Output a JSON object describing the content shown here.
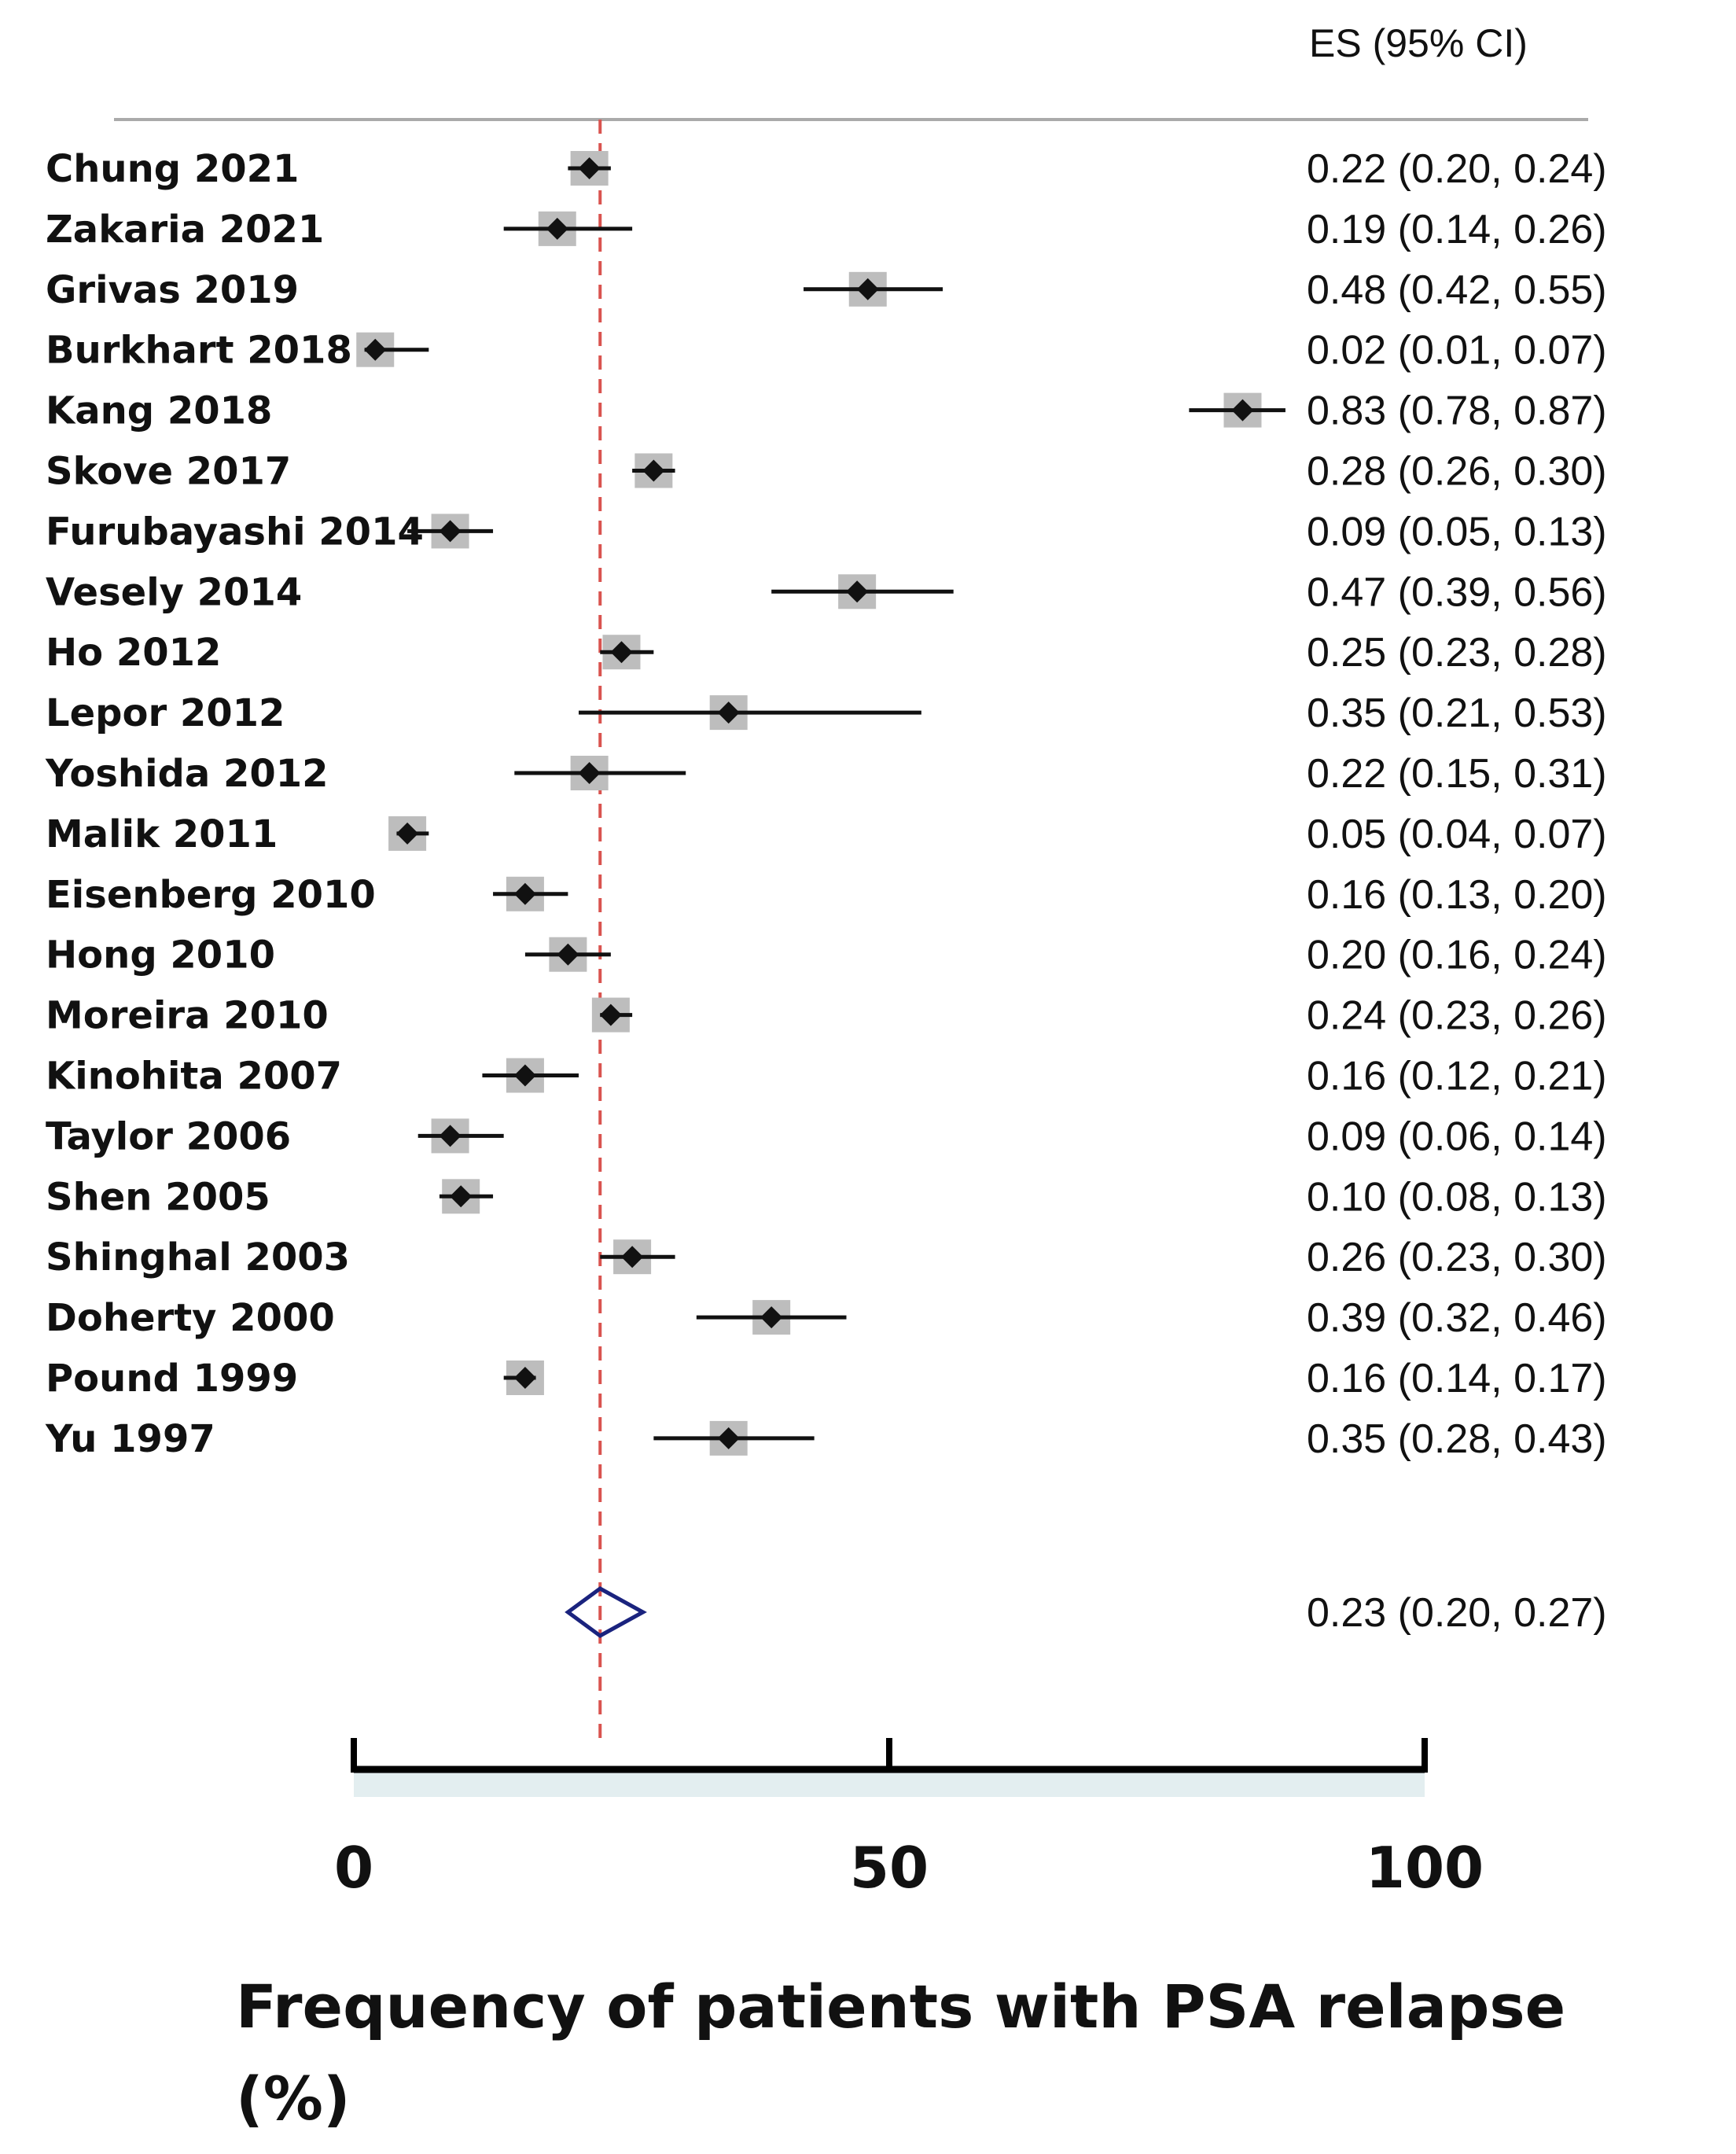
{
  "chart_data": {
    "type": "forest",
    "es_header": "ES (95% CI)",
    "xlabel_lines": [
      "Frequency of patients with PSA relapse",
      "(%)"
    ],
    "xlim": [
      0,
      100
    ],
    "x_ticks": [
      0,
      50,
      100
    ],
    "x_tick_labels": [
      "0",
      "50",
      "100"
    ],
    "reference_line": 23,
    "studies": [
      {
        "label": "Chung 2021",
        "es": 22,
        "lo": 20,
        "hi": 24,
        "text": "0.22 (0.20,  0.24)"
      },
      {
        "label": "Zakaria 2021",
        "es": 19,
        "lo": 14,
        "hi": 26,
        "text": "0.19 (0.14,  0.26)"
      },
      {
        "label": "Grivas 2019",
        "es": 48,
        "lo": 42,
        "hi": 55,
        "text": "0.48 (0.42,  0.55)"
      },
      {
        "label": "Burkhart 2018",
        "es": 2,
        "lo": 1,
        "hi": 7,
        "text": "0.02 (0.01,   0.07)"
      },
      {
        "label": "Kang 2018",
        "es": 83,
        "lo": 78,
        "hi": 87,
        "text": "0.83 (0.78,  0.87)"
      },
      {
        "label": "Skove 2017",
        "es": 28,
        "lo": 26,
        "hi": 30,
        "text": "0.28 (0.26,  0.30)"
      },
      {
        "label": "Furubayashi 2014",
        "es": 9,
        "lo": 5,
        "hi": 13,
        "text": "0.09 (0.05,  0.13)"
      },
      {
        "label": "Vesely 2014",
        "es": 47,
        "lo": 39,
        "hi": 56,
        "text": "0.47 (0.39,  0.56)"
      },
      {
        "label": "Ho 2012",
        "es": 25,
        "lo": 23,
        "hi": 28,
        "text": "0.25 (0.23,  0.28)"
      },
      {
        "label": "Lepor 2012",
        "es": 35,
        "lo": 21,
        "hi": 53,
        "text": "0.35 (0.21, 0.53)"
      },
      {
        "label": "Yoshida 2012",
        "es": 22,
        "lo": 15,
        "hi": 31,
        "text": "0.22 (0.15,  0.31)"
      },
      {
        "label": "Malik 2011",
        "es": 5,
        "lo": 4,
        "hi": 7,
        "text": "0.05 (0.04,  0.07)"
      },
      {
        "label": "Eisenberg 2010",
        "es": 16,
        "lo": 13,
        "hi": 20,
        "text": "0.16 (0.13,  0.20)"
      },
      {
        "label": "Hong 2010",
        "es": 20,
        "lo": 16,
        "hi": 24,
        "text": "0.20 (0.16,  0.24)"
      },
      {
        "label": "Moreira 2010",
        "es": 24,
        "lo": 23,
        "hi": 26,
        "text": "0.24 (0.23,  0.26)"
      },
      {
        "label": "Kinohita 2007",
        "es": 16,
        "lo": 12,
        "hi": 21,
        "text": "0.16 (0.12,  0.21)"
      },
      {
        "label": "Taylor 2006",
        "es": 9,
        "lo": 6,
        "hi": 14,
        "text": "0.09 (0.06,  0.14)"
      },
      {
        "label": "Shen 2005",
        "es": 10,
        "lo": 8,
        "hi": 13,
        "text": "0.10 (0.08,  0.13)"
      },
      {
        "label": "Shinghal 2003",
        "es": 26,
        "lo": 23,
        "hi": 30,
        "text": "0.26 (0.23,  0.30)"
      },
      {
        "label": "Doherty 2000",
        "es": 39,
        "lo": 32,
        "hi": 46,
        "text": "0.39 (0.32,  0.46)"
      },
      {
        "label": "Pound 1999",
        "es": 16,
        "lo": 14,
        "hi": 17,
        "text": "0.16 (0.14,  0.17)"
      },
      {
        "label": "Yu 1997",
        "es": 35,
        "lo": 28,
        "hi": 43,
        "text": "0.35 (0.28,  0.43)"
      }
    ],
    "overall": {
      "es": 23,
      "lo": 20,
      "hi": 27,
      "text": "0.23 (0.20, 0.27)"
    },
    "colors": {
      "marker": "#111111",
      "box": "#bdbdbd",
      "ref_line": "#d9534f",
      "overall_diamond": "#1a237e",
      "axis": "#000000",
      "axis_band": "#e3eef0",
      "header_rule": "#aaaaaa"
    }
  }
}
